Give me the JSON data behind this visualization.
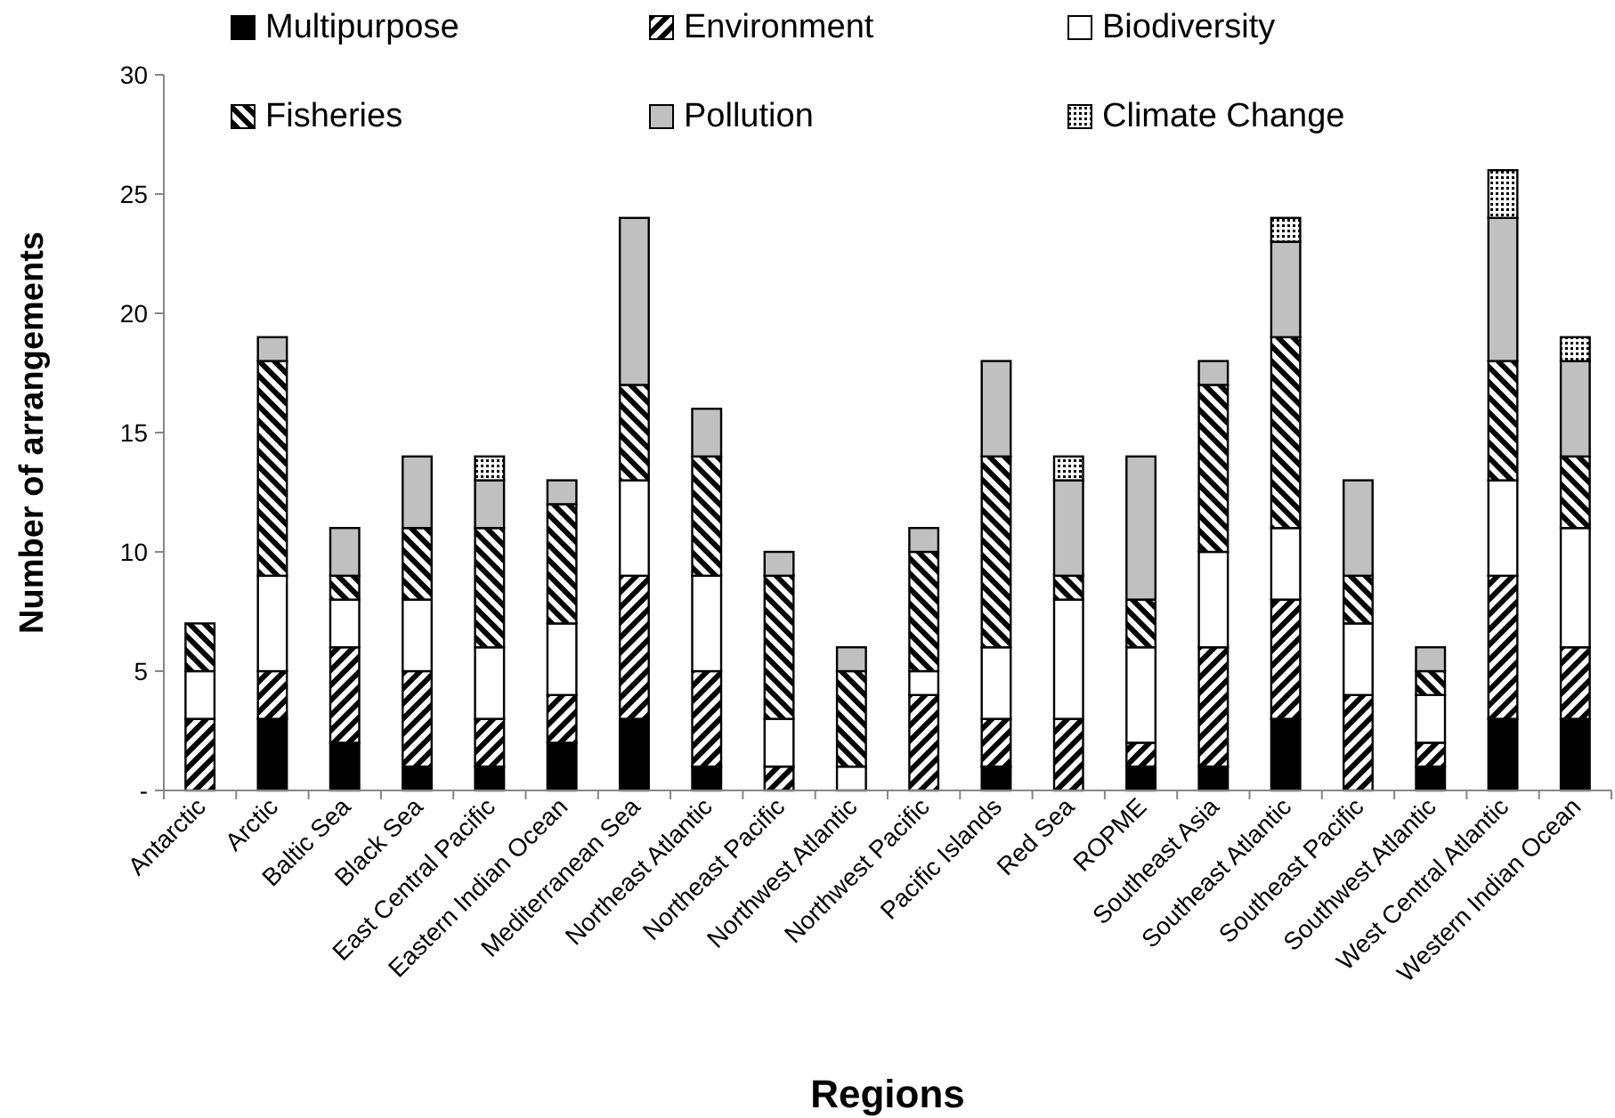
{
  "chart_data": {
    "type": "bar",
    "stacked": true,
    "xlabel": "Regions",
    "ylabel": "Number of arrangements",
    "categories": [
      "Antarctic",
      "Arctic",
      "Baltic Sea",
      "Black Sea",
      "East Central Pacific",
      "Eastern Indian Ocean",
      "Mediterranean Sea",
      "Northeast Atlantic",
      "Northeast Pacific",
      "Northwest Atlantic",
      "Northwest Pacific",
      "Pacific Islands",
      "Red Sea",
      "ROPME",
      "Southeast Asia",
      "Southeast Atlantic",
      "Southeast Pacific",
      "Southwest Atlantic",
      "West Central Atlantic",
      "Western Indian Ocean"
    ],
    "series": [
      {
        "name": "Multipurpose",
        "color": "#000000",
        "values": [
          0,
          3,
          2,
          1,
          1,
          2,
          3,
          1,
          0,
          0,
          0,
          1,
          0,
          1,
          1,
          3,
          0,
          1,
          3,
          3
        ]
      },
      {
        "name": "Environment",
        "color": "#000000",
        "values": [
          3,
          2,
          4,
          4,
          2,
          2,
          6,
          4,
          1,
          0,
          4,
          2,
          3,
          1,
          5,
          5,
          4,
          1,
          6,
          3
        ]
      },
      {
        "name": "Biodiversity",
        "color": "#ffffff",
        "values": [
          2,
          4,
          2,
          3,
          3,
          3,
          4,
          4,
          2,
          1,
          1,
          3,
          5,
          4,
          4,
          3,
          3,
          2,
          4,
          5
        ]
      },
      {
        "name": "Fisheries",
        "color": "#000000",
        "values": [
          2,
          9,
          1,
          3,
          5,
          5,
          4,
          5,
          6,
          4,
          5,
          8,
          1,
          2,
          7,
          8,
          2,
          1,
          5,
          3
        ]
      },
      {
        "name": "Pollution",
        "color": "#c0c0c0",
        "values": [
          0,
          1,
          2,
          3,
          2,
          1,
          7,
          2,
          1,
          1,
          1,
          4,
          4,
          6,
          1,
          4,
          4,
          1,
          6,
          4
        ]
      },
      {
        "name": "Climate Change",
        "color": "#000000",
        "values": [
          0,
          0,
          0,
          0,
          1,
          0,
          0,
          0,
          0,
          0,
          0,
          0,
          1,
          0,
          0,
          1,
          0,
          0,
          2,
          1
        ]
      }
    ],
    "ylim": [
      0,
      30
    ],
    "yticks": [
      {
        "value": 0,
        "label": "-"
      },
      5,
      10,
      15,
      20,
      25,
      30
    ],
    "legend": "top",
    "grid": false
  }
}
